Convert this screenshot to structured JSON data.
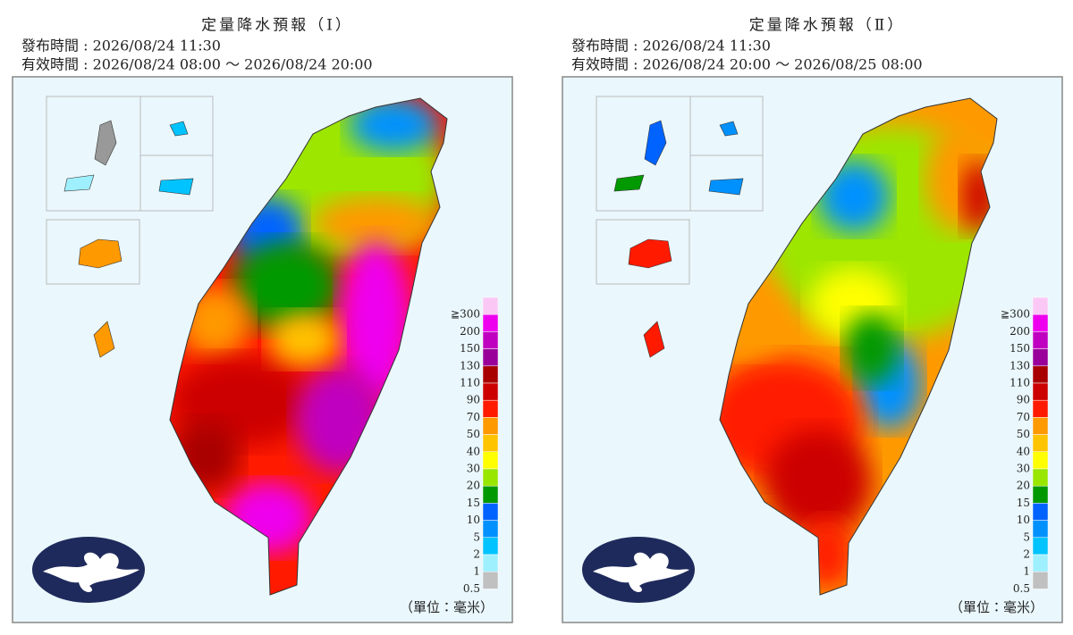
{
  "panels": [
    {
      "title": "定量降水預報（Ⅰ）",
      "issued": "發布時間 : 2026/08/24 11:30",
      "valid": "有效時間 : 2026/08/24 08:00 ～ 2026/08/24 20:00",
      "unit": "（單位：毫米）"
    },
    {
      "title": "定量降水預報（Ⅱ）",
      "issued": "發布時間 : 2026/08/24 11:30",
      "valid": "有效時間 : 2026/08/24 20:00 ～ 2026/08/25 08:00",
      "unit": "（單位：毫米）"
    }
  ],
  "legend": [
    {
      "label": "≧300",
      "color": "#fbc8f5"
    },
    {
      "label": "200",
      "color": "#ee00ee"
    },
    {
      "label": "150",
      "color": "#c000c0"
    },
    {
      "label": "130",
      "color": "#99009a"
    },
    {
      "label": "110",
      "color": "#a80000"
    },
    {
      "label": "90",
      "color": "#cc0000"
    },
    {
      "label": "70",
      "color": "#ff1a00"
    },
    {
      "label": "50",
      "color": "#ff9900"
    },
    {
      "label": "40",
      "color": "#ffc400"
    },
    {
      "label": "30",
      "color": "#ffff00"
    },
    {
      "label": "20",
      "color": "#99e600"
    },
    {
      "label": "15",
      "color": "#009900"
    },
    {
      "label": "10",
      "color": "#0063ff"
    },
    {
      "label": "5",
      "color": "#0091ff"
    },
    {
      "label": "2",
      "color": "#00c3ff"
    },
    {
      "label": "1",
      "color": "#9ff0ff"
    },
    {
      "label": "0.5",
      "color": "#c0c0c0"
    }
  ]
}
